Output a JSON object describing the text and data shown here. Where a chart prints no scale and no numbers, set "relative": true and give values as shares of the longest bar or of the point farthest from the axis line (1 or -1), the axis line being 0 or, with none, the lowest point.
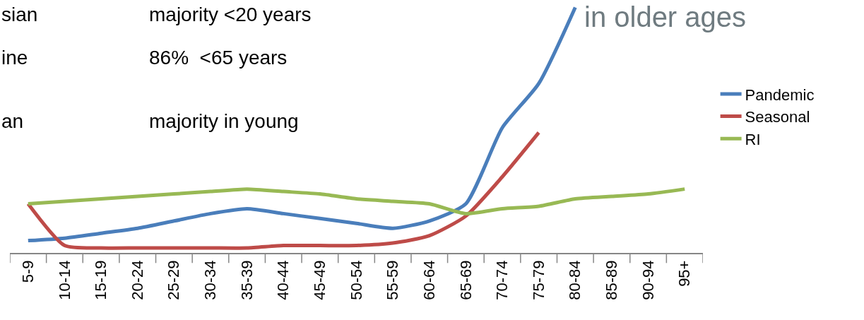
{
  "chart_data": {
    "type": "line",
    "relative": true,
    "title": "in older ages",
    "annotations": [
      "sian",
      "majority <20 years",
      "ine",
      "86%  <65 years",
      "an",
      "majority in young"
    ],
    "categories": [
      "5-9",
      "10-14",
      "15-19",
      "20-24",
      "25-29",
      "30-34",
      "35-39",
      "40-44",
      "45-49",
      "50-54",
      "55-59",
      "60-64",
      "65-69",
      "70-74",
      "75-79",
      "80-84",
      "85-89",
      "90-94",
      "95+"
    ],
    "series": [
      {
        "name": "Pandemic",
        "color": "#4a7ebb",
        "values": [
          0.05,
          0.06,
          0.08,
          0.1,
          0.13,
          0.16,
          0.18,
          0.16,
          0.14,
          0.12,
          0.1,
          0.13,
          0.2,
          0.51,
          0.69,
          1,
          null,
          null,
          null
        ]
      },
      {
        "name": "Seasonal",
        "color": "#be4b48",
        "values": [
          0.2,
          0.03,
          0.02,
          0.02,
          0.02,
          0.02,
          0.02,
          0.03,
          0.03,
          0.03,
          0.04,
          0.07,
          0.15,
          0.31,
          0.49,
          null,
          null,
          null,
          null
        ]
      },
      {
        "name": "RI",
        "color": "#98b954",
        "values": [
          0.2,
          0.21,
          0.22,
          0.23,
          0.24,
          0.25,
          0.26,
          0.25,
          0.24,
          0.22,
          0.21,
          0.2,
          0.16,
          0.18,
          0.19,
          0.22,
          0.23,
          0.24,
          0.26
        ]
      }
    ],
    "legend": "right",
    "marker": "none",
    "line_style": "solid"
  }
}
